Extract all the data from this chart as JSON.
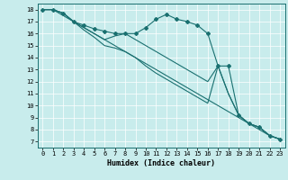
{
  "xlabel": "Humidex (Indice chaleur)",
  "ylabel": "",
  "bg_color": "#c8ecec",
  "grid_color": "#ffffff",
  "line_color": "#1a7070",
  "xlim": [
    -0.5,
    23.5
  ],
  "ylim": [
    6.5,
    18.5
  ],
  "yticks": [
    7,
    8,
    9,
    10,
    11,
    12,
    13,
    14,
    15,
    16,
    17,
    18
  ],
  "xticks": [
    0,
    1,
    2,
    3,
    4,
    5,
    6,
    7,
    8,
    9,
    10,
    11,
    12,
    13,
    14,
    15,
    16,
    17,
    18,
    19,
    20,
    21,
    22,
    23
  ],
  "series": [
    {
      "x": [
        0,
        1,
        2,
        3,
        4,
        5,
        6,
        7,
        8,
        9,
        10,
        11,
        12,
        13,
        14,
        15,
        16,
        17,
        18,
        19,
        20,
        21,
        22,
        23
      ],
      "y": [
        18.0,
        18.0,
        17.7,
        17.0,
        16.7,
        16.4,
        16.2,
        16.0,
        16.0,
        16.0,
        16.5,
        17.2,
        17.6,
        17.2,
        17.0,
        16.7,
        16.0,
        13.3,
        13.3,
        9.2,
        8.5,
        8.2,
        7.5,
        7.2
      ],
      "marker": true
    },
    {
      "x": [
        0,
        1,
        2,
        3,
        4,
        5,
        6,
        7,
        8,
        9,
        10,
        11,
        12,
        13,
        14,
        15,
        16,
        17,
        18,
        19,
        20,
        21,
        22,
        23
      ],
      "y": [
        18.0,
        18.0,
        17.7,
        17.0,
        16.5,
        16.0,
        15.5,
        15.8,
        16.0,
        15.5,
        15.0,
        14.5,
        14.0,
        13.5,
        13.0,
        12.5,
        12.0,
        13.3,
        11.0,
        9.2,
        8.5,
        8.2,
        7.5,
        7.2
      ],
      "marker": false
    },
    {
      "x": [
        0,
        1,
        2,
        3,
        4,
        5,
        6,
        7,
        8,
        9,
        10,
        11,
        12,
        13,
        14,
        15,
        16,
        17,
        18,
        19,
        20,
        21,
        22,
        23
      ],
      "y": [
        18.0,
        18.0,
        17.7,
        17.0,
        16.3,
        15.7,
        15.0,
        14.8,
        14.5,
        14.0,
        13.3,
        12.7,
        12.2,
        11.7,
        11.2,
        10.7,
        10.2,
        13.3,
        11.0,
        9.2,
        8.5,
        8.2,
        7.5,
        7.2
      ],
      "marker": false
    },
    {
      "x": [
        0,
        1,
        2,
        3,
        4,
        5,
        6,
        7,
        8,
        9,
        10,
        11,
        12,
        13,
        14,
        15,
        16,
        17,
        18,
        19,
        20,
        21,
        22,
        23
      ],
      "y": [
        18.0,
        18.0,
        17.5,
        17.0,
        16.5,
        16.0,
        15.5,
        15.0,
        14.5,
        14.0,
        13.5,
        13.0,
        12.5,
        12.0,
        11.5,
        11.0,
        10.5,
        10.0,
        9.5,
        9.0,
        8.5,
        8.0,
        7.5,
        7.2
      ],
      "marker": false
    }
  ]
}
